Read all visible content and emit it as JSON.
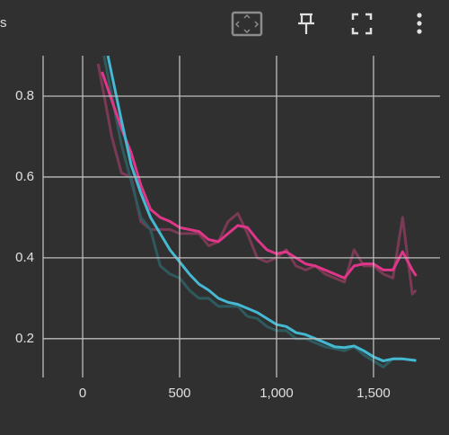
{
  "chart_data": {
    "type": "line",
    "title": "s",
    "xlim": [
      -204,
      1843
    ],
    "ylim": [
      0.104,
      0.9
    ],
    "xticks": [
      0,
      500,
      {
        "value": 1000,
        "label": "1,000"
      },
      {
        "value": 1500,
        "label": "1,500"
      }
    ],
    "yticks": [
      0.2,
      0.4,
      0.6,
      0.8
    ],
    "grid": true,
    "series": [
      {
        "color": "#7a3a55",
        "x": [
          80,
          150,
          200,
          250,
          300,
          350,
          400,
          450,
          500,
          550,
          600,
          650,
          700,
          750,
          800,
          850,
          900,
          950,
          1000,
          1050,
          1100,
          1150,
          1200,
          1250,
          1300,
          1350,
          1400,
          1450,
          1500,
          1550,
          1600,
          1650,
          1700,
          1720
        ],
        "values": [
          0.88,
          0.7,
          0.61,
          0.6,
          0.49,
          0.47,
          0.47,
          0.47,
          0.46,
          0.46,
          0.46,
          0.43,
          0.44,
          0.49,
          0.51,
          0.46,
          0.4,
          0.39,
          0.4,
          0.42,
          0.38,
          0.37,
          0.38,
          0.36,
          0.35,
          0.34,
          0.42,
          0.38,
          0.38,
          0.36,
          0.35,
          0.5,
          0.31,
          0.32
        ]
      },
      {
        "color": "#2e5a5e",
        "x": [
          110,
          200,
          250,
          300,
          350,
          400,
          450,
          500,
          550,
          600,
          650,
          700,
          750,
          800,
          850,
          900,
          950,
          1000,
          1050,
          1100,
          1150,
          1200,
          1250,
          1300,
          1350,
          1400,
          1450,
          1500,
          1550,
          1600,
          1650,
          1720
        ],
        "values": [
          0.9,
          0.68,
          0.59,
          0.5,
          0.47,
          0.38,
          0.36,
          0.35,
          0.32,
          0.3,
          0.3,
          0.28,
          0.28,
          0.28,
          0.255,
          0.25,
          0.23,
          0.22,
          0.22,
          0.2,
          0.2,
          0.19,
          0.18,
          0.175,
          0.17,
          0.18,
          0.16,
          0.145,
          0.13,
          0.15,
          0.15,
          0.146
        ]
      },
      {
        "color": "#e0368a",
        "x": [
          100,
          150,
          200,
          250,
          300,
          350,
          400,
          450,
          500,
          550,
          600,
          650,
          700,
          750,
          800,
          850,
          900,
          950,
          1000,
          1050,
          1100,
          1150,
          1200,
          1250,
          1300,
          1350,
          1400,
          1450,
          1500,
          1550,
          1600,
          1650,
          1700,
          1720
        ],
        "values": [
          0.86,
          0.79,
          0.72,
          0.66,
          0.58,
          0.52,
          0.5,
          0.49,
          0.475,
          0.47,
          0.465,
          0.445,
          0.44,
          0.46,
          0.48,
          0.475,
          0.445,
          0.42,
          0.41,
          0.415,
          0.4,
          0.385,
          0.38,
          0.37,
          0.36,
          0.35,
          0.38,
          0.385,
          0.385,
          0.37,
          0.37,
          0.415,
          0.37,
          0.355
        ]
      },
      {
        "color": "#45b8d2",
        "x": [
          130,
          200,
          250,
          300,
          350,
          400,
          450,
          500,
          550,
          600,
          650,
          700,
          750,
          800,
          850,
          900,
          950,
          1000,
          1050,
          1100,
          1150,
          1200,
          1250,
          1300,
          1350,
          1400,
          1450,
          1500,
          1550,
          1600,
          1650,
          1720
        ],
        "values": [
          0.9,
          0.74,
          0.63,
          0.56,
          0.5,
          0.46,
          0.42,
          0.39,
          0.36,
          0.335,
          0.32,
          0.3,
          0.29,
          0.285,
          0.275,
          0.265,
          0.25,
          0.235,
          0.23,
          0.215,
          0.21,
          0.2,
          0.19,
          0.18,
          0.178,
          0.182,
          0.17,
          0.155,
          0.145,
          0.15,
          0.15,
          0.146
        ]
      }
    ]
  }
}
